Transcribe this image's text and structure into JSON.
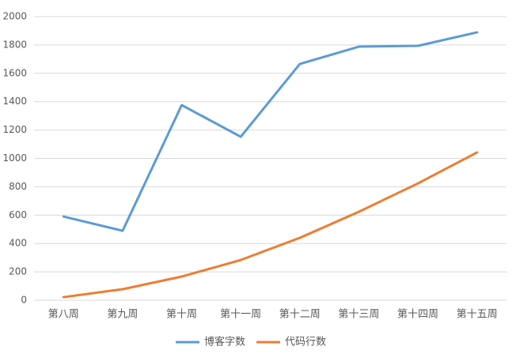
{
  "chart_data": {
    "type": "line",
    "categories": [
      "第八周",
      "第九周",
      "第十周",
      "第十一周",
      "第十二周",
      "第十三周",
      "第十四周",
      "第十五周"
    ],
    "series": [
      {
        "name": "博客字数",
        "color": "#5b9bd5",
        "values": [
          590,
          490,
          1376,
          1153,
          1666,
          1788,
          1794,
          1889
        ]
      },
      {
        "name": "代码行数",
        "color": "#ed7d31",
        "values": [
          22,
          78,
          167,
          284,
          440,
          624,
          824,
          1042
        ]
      }
    ],
    "ylim": [
      0,
      2000
    ],
    "yticks": [
      0,
      200,
      400,
      600,
      800,
      1000,
      1200,
      1400,
      1600,
      1800,
      2000
    ],
    "grid": true,
    "legend": "bottom"
  }
}
